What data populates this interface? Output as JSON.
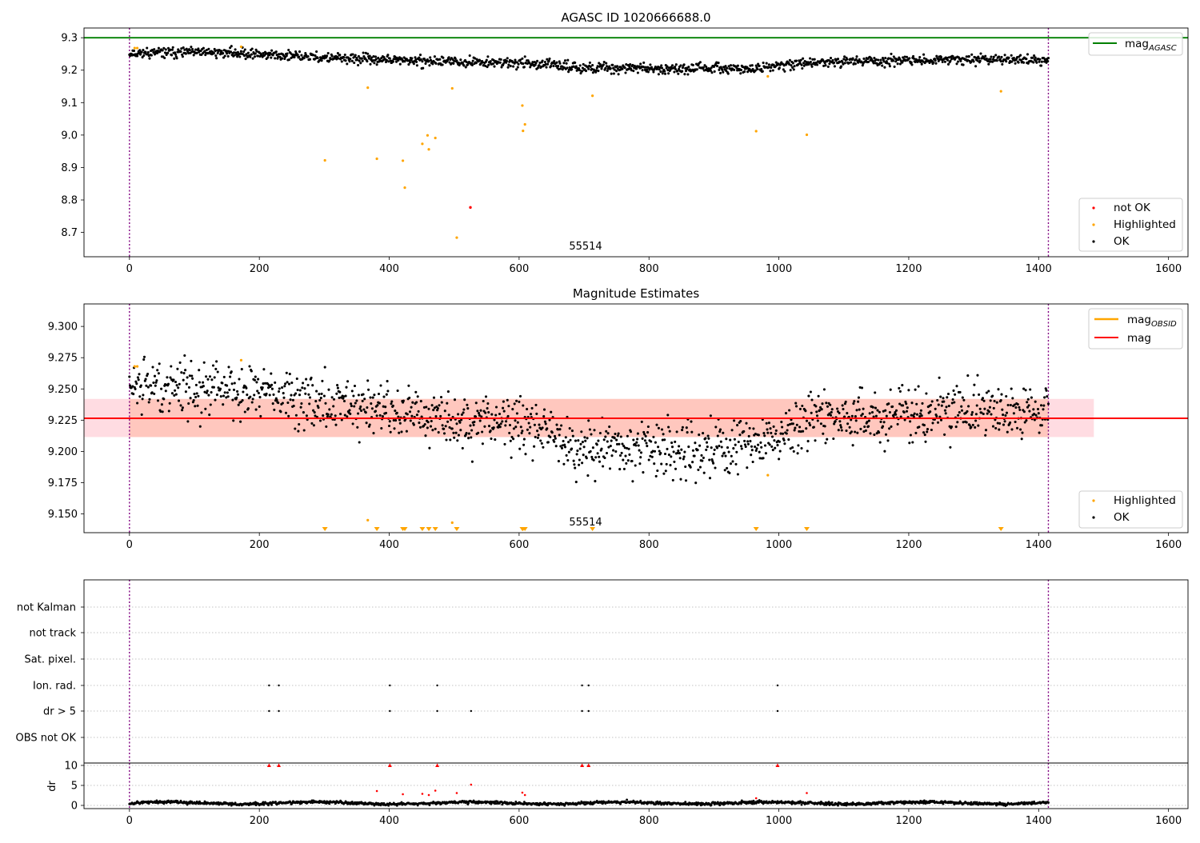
{
  "chart_data": [
    {
      "type": "scatter",
      "title": "AGASC ID 1020666688.0",
      "xlabel": "",
      "ylabel": "",
      "xlim": [
        -70,
        1630
      ],
      "ylim": [
        8.625,
        9.33
      ],
      "xticks": [
        0,
        200,
        400,
        600,
        800,
        1000,
        1200,
        1400,
        1600
      ],
      "yticks": [
        8.7,
        8.8,
        8.9,
        9.0,
        9.1,
        9.2,
        9.3
      ],
      "ytick_labels": [
        "8.7",
        "8.8",
        "8.9",
        "9.0",
        "9.1",
        "9.2",
        "9.3"
      ],
      "vertical_lines": [
        0,
        1415
      ],
      "hlines": [
        {
          "name": "mag_AGASC",
          "y": 9.3,
          "color": "#008000"
        }
      ],
      "annotation": {
        "text": "55514",
        "x": 707
      },
      "ok_series": {
        "name": "OK",
        "color": "#000000",
        "x_range": [
          0,
          1415
        ],
        "n": 1416,
        "trend_knots": [
          [
            0,
            9.253
          ],
          [
            150,
            9.255
          ],
          [
            300,
            9.238
          ],
          [
            450,
            9.228
          ],
          [
            600,
            9.223
          ],
          [
            700,
            9.208
          ],
          [
            850,
            9.205
          ],
          [
            970,
            9.205
          ],
          [
            1050,
            9.225
          ],
          [
            1250,
            9.232
          ],
          [
            1415,
            9.233
          ]
        ]
      },
      "highlighted": {
        "name": "Highlighted",
        "color": "#ffa500",
        "points": [
          [
            8,
            9.268
          ],
          [
            12,
            9.268
          ],
          [
            172,
            9.272
          ],
          [
            301,
            8.922
          ],
          [
            367,
            9.146
          ],
          [
            381,
            8.927
          ],
          [
            421,
            8.921
          ],
          [
            424,
            8.838
          ],
          [
            451,
            8.973
          ],
          [
            459,
            8.999
          ],
          [
            461,
            8.956
          ],
          [
            471,
            8.991
          ],
          [
            497,
            9.144
          ],
          [
            504,
            8.684
          ],
          [
            605,
            9.091
          ],
          [
            606,
            9.013
          ],
          [
            609,
            9.033
          ],
          [
            713,
            9.121
          ],
          [
            965,
            9.012
          ],
          [
            983,
            9.181
          ],
          [
            1043,
            9.001
          ],
          [
            1342,
            9.135
          ]
        ]
      },
      "not_ok": {
        "name": "not OK",
        "color": "#ff0000",
        "points": [
          [
            525,
            8.777
          ]
        ]
      },
      "legend_lines": [
        {
          "label": "mag",
          "sub": "AGASC",
          "color": "#008000"
        }
      ],
      "legend_points": [
        {
          "label": "not OK",
          "color": "#ff0000"
        },
        {
          "label": "Highlighted",
          "color": "#ffa500"
        },
        {
          "label": "OK",
          "color": "#000000"
        }
      ]
    },
    {
      "type": "scatter",
      "title": "Magnitude Estimates",
      "xlabel": "",
      "ylabel": "",
      "xlim": [
        -70,
        1630
      ],
      "ylim": [
        9.135,
        9.318
      ],
      "xticks": [
        0,
        200,
        400,
        600,
        800,
        1000,
        1200,
        1400,
        1600
      ],
      "yticks": [
        9.15,
        9.175,
        9.2,
        9.225,
        9.25,
        9.275,
        9.3
      ],
      "ytick_labels": [
        "9.150",
        "9.175",
        "9.200",
        "9.225",
        "9.250",
        "9.275",
        "9.300"
      ],
      "vertical_lines": [
        0,
        1415
      ],
      "mag": {
        "name": "mag",
        "value": 9.2265,
        "color": "#ff0000",
        "x_range": [
          -70,
          1630
        ]
      },
      "mag_band": {
        "low": 9.2115,
        "high": 9.242,
        "x_range": [
          -70,
          1485
        ],
        "color": "#ffc0cb"
      },
      "mag_obsid": {
        "name": "mag_OBSID",
        "color": "#ffa500",
        "band": {
          "low": 9.2115,
          "high": 9.242,
          "x_range": [
            0,
            1415
          ],
          "color": "#ffa07a"
        }
      },
      "annotation": {
        "text": "55514",
        "x": 707
      },
      "ok_series": {
        "name": "OK",
        "color": "#000000",
        "x_range": [
          0,
          1415
        ],
        "n": 1416,
        "trend_knots": [
          [
            0,
            9.251
          ],
          [
            150,
            9.252
          ],
          [
            300,
            9.238
          ],
          [
            450,
            9.228
          ],
          [
            600,
            9.223
          ],
          [
            700,
            9.202
          ],
          [
            850,
            9.2
          ],
          [
            970,
            9.205
          ],
          [
            1050,
            9.225
          ],
          [
            1250,
            9.232
          ],
          [
            1415,
            9.233
          ]
        ]
      },
      "highlighted": {
        "name": "Highlighted",
        "color": "#ffa500",
        "points": [
          [
            8,
            9.268
          ],
          [
            12,
            9.268
          ],
          [
            172,
            9.273
          ],
          [
            367,
            9.145
          ],
          [
            497,
            9.143
          ],
          [
            983,
            9.181
          ]
        ]
      },
      "offscale_markers_x": [
        301,
        381,
        421,
        424,
        451,
        461,
        471,
        504,
        605,
        606,
        609,
        713,
        965,
        1043,
        1342
      ],
      "legend_lines": [
        {
          "label": "mag",
          "sub": "OBSID",
          "color": "#ffa500"
        },
        {
          "label": "mag",
          "sub": "",
          "color": "#ff0000"
        }
      ],
      "legend_points": [
        {
          "label": "Highlighted",
          "color": "#ffa500"
        },
        {
          "label": "OK",
          "color": "#000000"
        }
      ]
    },
    {
      "type": "scatter",
      "title": "",
      "xlim": [
        -70,
        1630
      ],
      "xticks": [
        0,
        200,
        400,
        600,
        800,
        1000,
        1200,
        1400,
        1600
      ],
      "vertical_lines": [
        0,
        1415
      ],
      "flag_rows": [
        "not Kalman",
        "not track",
        "Sat. pixel.",
        "Ion. rad.",
        "dr > 5",
        "OBS not OK"
      ],
      "flags": {
        "Ion. rad.": [
          215,
          230,
          401,
          474,
          697,
          707,
          998
        ],
        "dr > 5": [
          215,
          230,
          401,
          474,
          526,
          697,
          707,
          998
        ]
      }
    },
    {
      "type": "scatter",
      "ylabel": "dr",
      "xlim": [
        -70,
        1630
      ],
      "ylim": [
        -0.8,
        10.6
      ],
      "xticks": [
        0,
        200,
        400,
        600,
        800,
        1000,
        1200,
        1400,
        1600
      ],
      "yticks": [
        0,
        5,
        10
      ],
      "ytick_labels": [
        "0",
        "5",
        "10"
      ],
      "vertical_lines": [
        0,
        1415
      ],
      "ok_series": {
        "name": "dr",
        "color": "#000000",
        "x_range": [
          0,
          1415
        ],
        "n": 1416,
        "baseline": 0.6
      },
      "clipped_markers_x": [
        215,
        230,
        401,
        474,
        697,
        707,
        998
      ],
      "red_points": [
        [
          381,
          3.6
        ],
        [
          421,
          2.8
        ],
        [
          451,
          2.9
        ],
        [
          461,
          2.6
        ],
        [
          471,
          3.7
        ],
        [
          504,
          3.1
        ],
        [
          526,
          5.2
        ],
        [
          605,
          3.2
        ],
        [
          609,
          2.6
        ],
        [
          965,
          1.8
        ],
        [
          1043,
          3.1
        ]
      ]
    }
  ]
}
